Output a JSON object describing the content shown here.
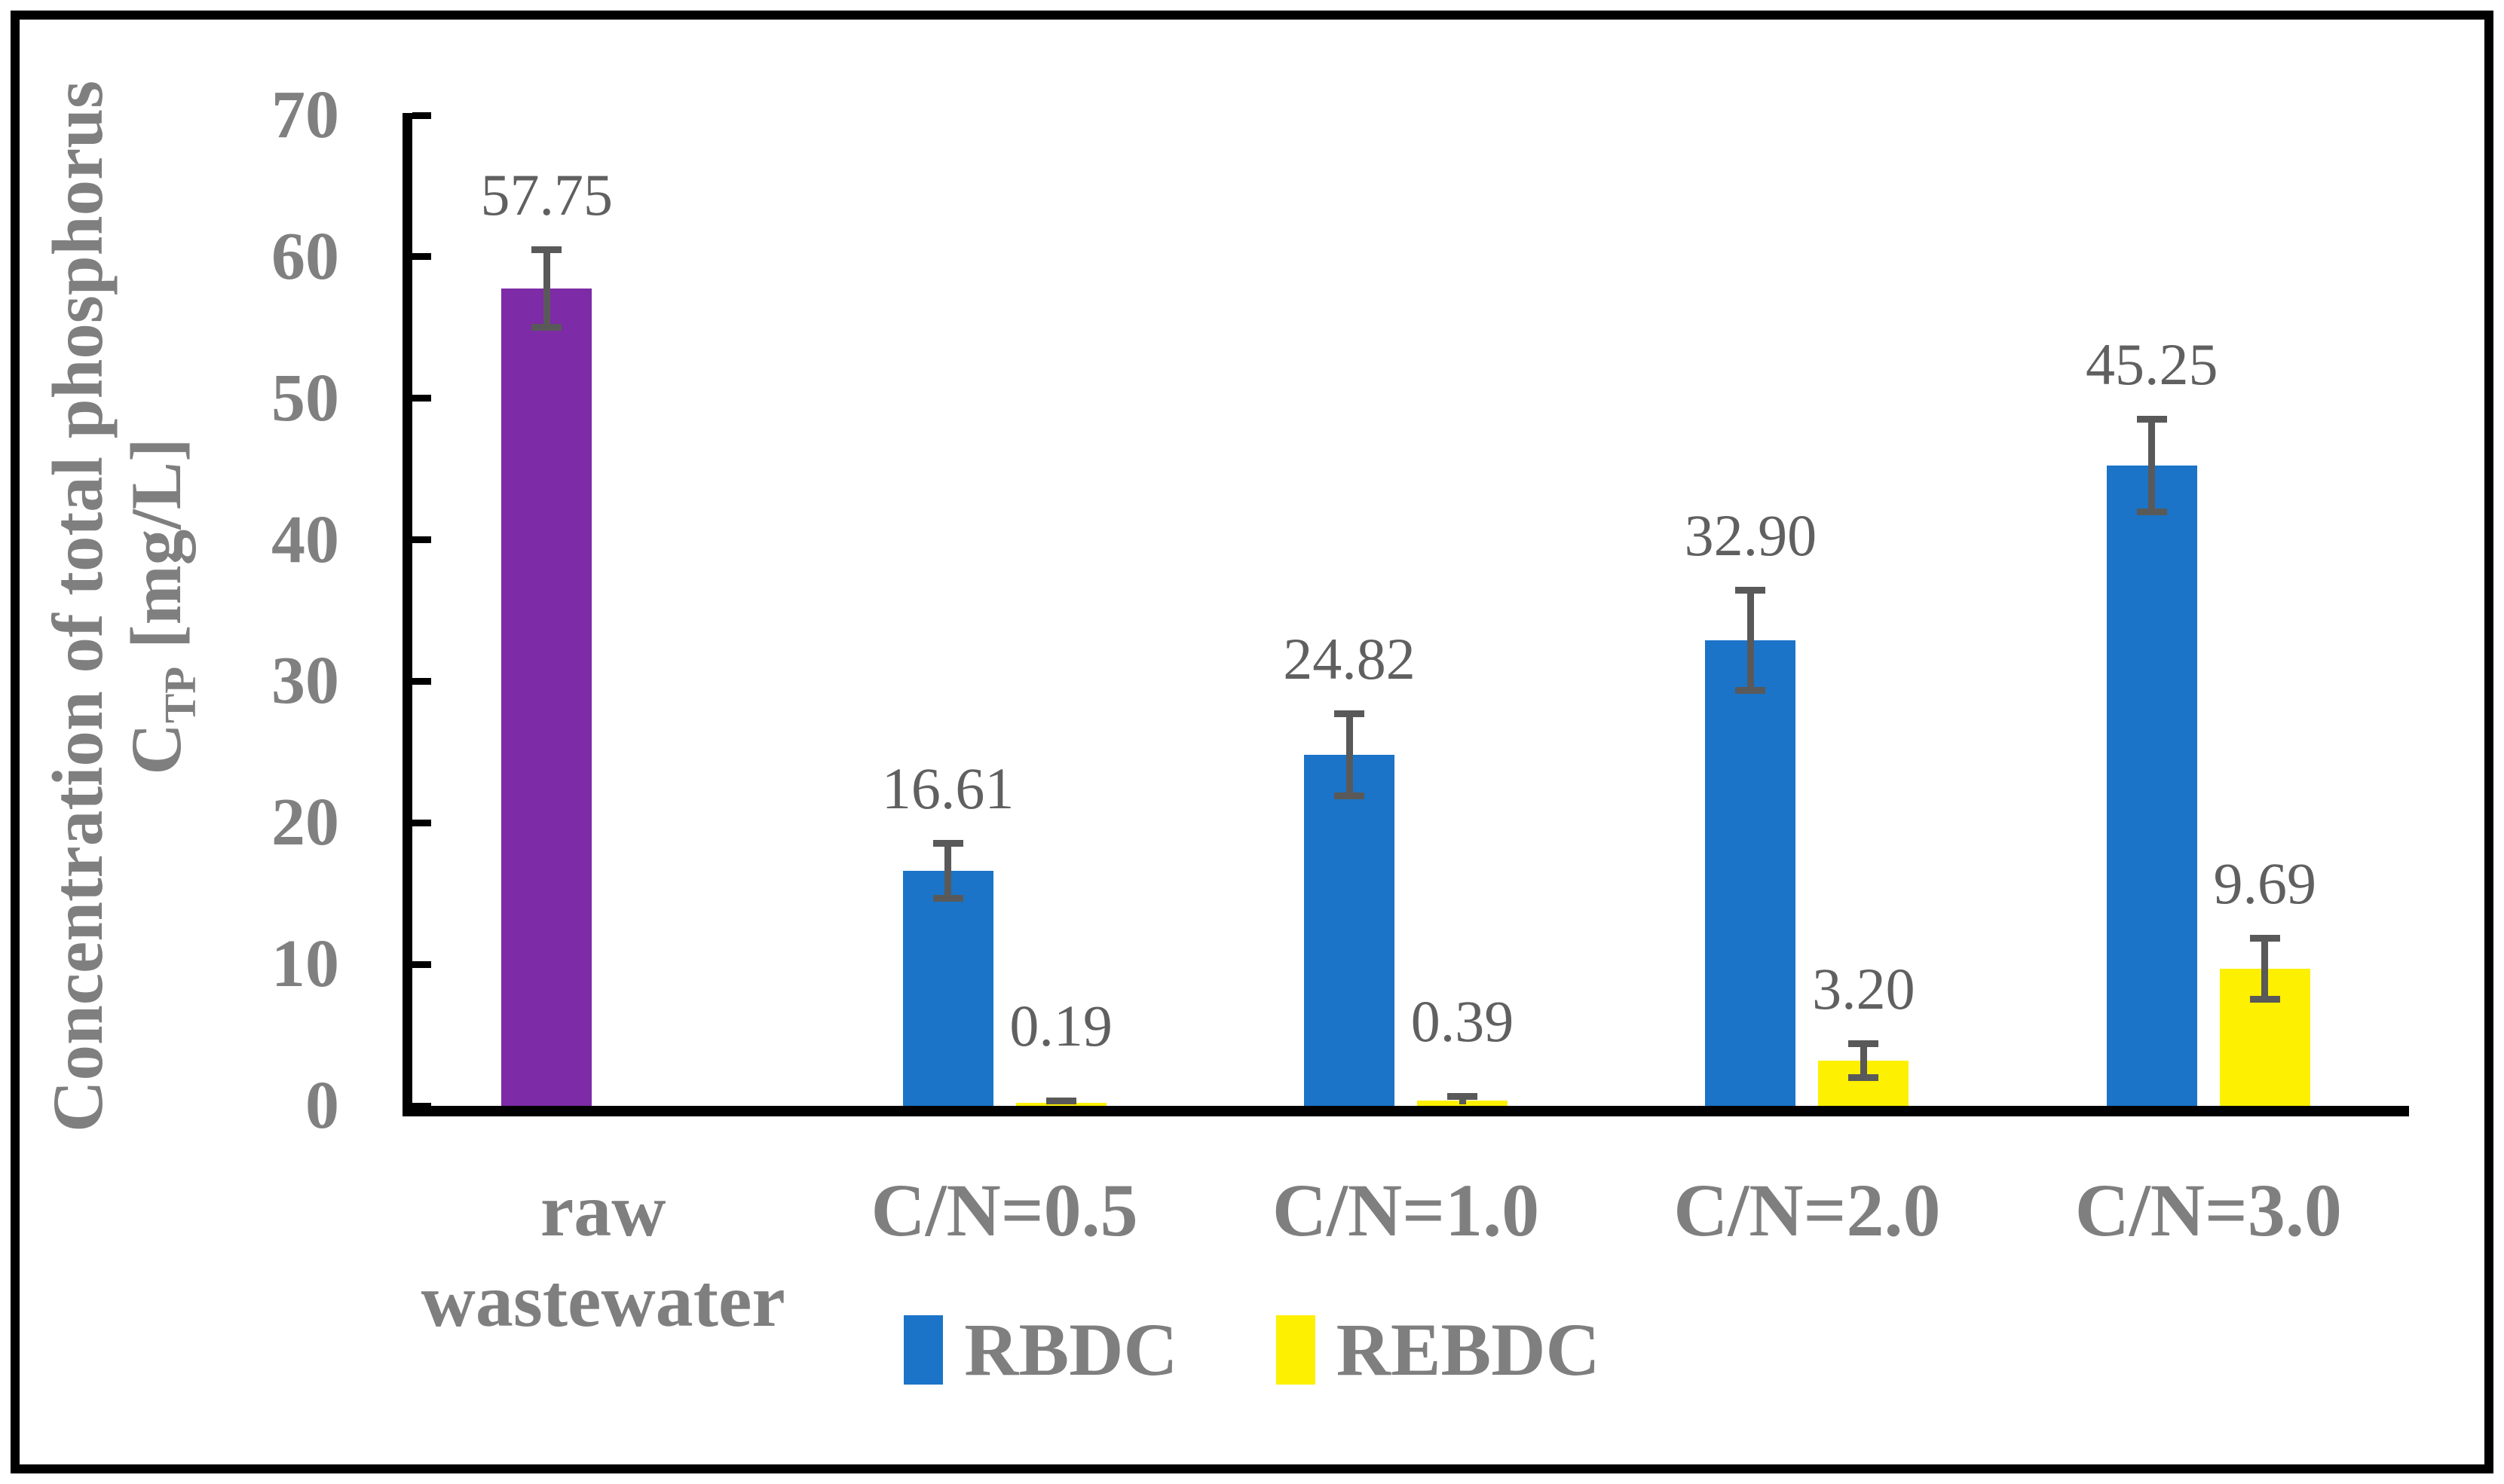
{
  "chart_data": {
    "type": "bar",
    "title": "",
    "ylabel_line1": "Concentration of total phosphorus",
    "ylabel_line2_main": "C",
    "ylabel_line2_sub": "TP",
    "ylabel_line2_unit": " [mg/L]",
    "ylim": [
      0,
      70
    ],
    "yticks": [
      0,
      10,
      20,
      30,
      40,
      50,
      60,
      70
    ],
    "grid": false,
    "legend_position": "bottom",
    "categories": [
      "raw wastewater",
      "C/N=0.5",
      "C/N=1.0",
      "C/N=2.0",
      "C/N=3.0"
    ],
    "category_lines": [
      [
        "raw",
        "wastewater"
      ],
      [
        "C/N=0.5"
      ],
      [
        "C/N=1.0"
      ],
      [
        "C/N=2.0"
      ],
      [
        "C/N=3.0"
      ]
    ],
    "series_names": [
      "raw wastewater",
      "RBDC",
      "REBDC"
    ],
    "bars": [
      {
        "category_index": 0,
        "slot": "left",
        "series": "raw wastewater",
        "value": 57.75,
        "label": "57.75",
        "error": 3.0,
        "color": "#7D2BA6"
      },
      {
        "category_index": 1,
        "slot": "left",
        "series": "RBDC",
        "value": 16.61,
        "label": "16.61",
        "error": 2.2,
        "color": "#1B74C8"
      },
      {
        "category_index": 1,
        "slot": "right",
        "series": "REBDC",
        "value": 0.19,
        "label": "0.19",
        "error": 0.35,
        "color": "#FDF000"
      },
      {
        "category_index": 2,
        "slot": "left",
        "series": "RBDC",
        "value": 24.82,
        "label": "24.82",
        "error": 3.15,
        "color": "#1B74C8"
      },
      {
        "category_index": 2,
        "slot": "right",
        "series": "REBDC",
        "value": 0.39,
        "label": "0.39",
        "error": 0.5,
        "color": "#FDF000"
      },
      {
        "category_index": 3,
        "slot": "left",
        "series": "RBDC",
        "value": 32.9,
        "label": "32.90",
        "error": 3.8,
        "color": "#1B74C8"
      },
      {
        "category_index": 3,
        "slot": "right",
        "series": "REBDC",
        "value": 3.2,
        "label": "3.20",
        "error": 1.45,
        "color": "#FDF000"
      },
      {
        "category_index": 4,
        "slot": "left",
        "series": "RBDC",
        "value": 45.25,
        "label": "45.25",
        "error": 3.5,
        "color": "#1B74C8"
      },
      {
        "category_index": 4,
        "slot": "right",
        "series": "REBDC",
        "value": 9.69,
        "label": "9.69",
        "error": 2.4,
        "color": "#FDF000"
      }
    ],
    "legend": [
      {
        "label": "RBDC",
        "color": "#1B74C8"
      },
      {
        "label": "REBDC",
        "color": "#FDF000"
      }
    ],
    "error_color": "#595959",
    "axis_color": "#000000",
    "text_color": "#7f7f7f"
  }
}
